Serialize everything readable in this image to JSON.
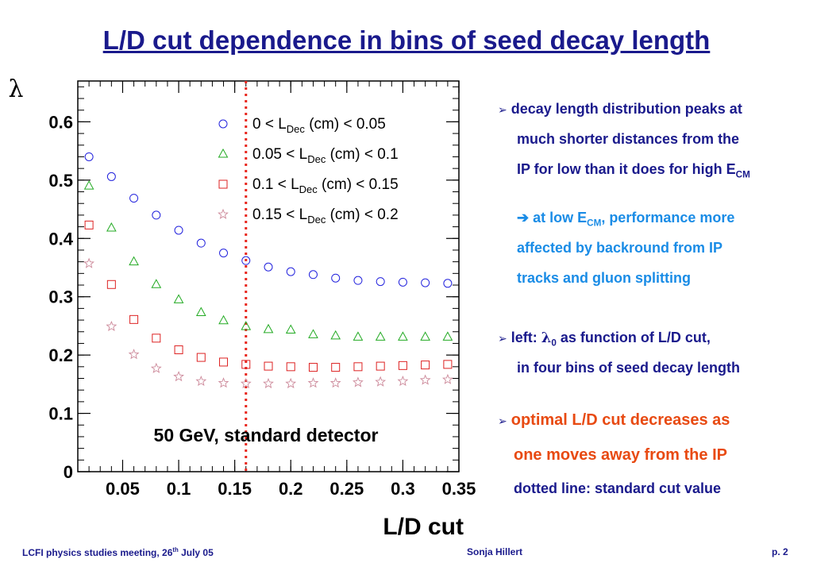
{
  "title": "L/D cut dependence in bins of seed decay length",
  "bullets": {
    "b1_line1": "decay length distribution peaks at",
    "b1_line2": "much shorter distances from the",
    "b1_line3_pre": "IP for low than it does for high E",
    "b1_line3_sub": "CM",
    "b2_line1_pre": "at low E",
    "b2_line1_sub": "CM",
    "b2_line1_post": ", performance more",
    "b2_line2": "affected by backround from IP",
    "b2_line3": "tracks and gluon splitting",
    "b3_line1_pre": "left: ",
    "b3_line1_sym": "λ",
    "b3_line1_sub": "0",
    "b3_line1_post": " as function of L/D cut,",
    "b3_line2": "in four bins of seed decay length",
    "b4_line1": "optimal L/D cut decreases as",
    "b4_line2": "one moves away from the IP",
    "b4_line3": "dotted line: standard cut value"
  },
  "footer": {
    "left_pre": "LCFI physics studies meeting, 26",
    "left_sup": "th",
    "left_post": " July 05",
    "center": "Sonja Hillert",
    "right": "p. 2"
  },
  "colors": {
    "navy": "#1a1a8c",
    "cyan": "#1a8ce6",
    "orange": "#e84a12",
    "series_blue": "#2222dd",
    "series_green": "#22aa22",
    "series_red": "#dd2222",
    "series_pink": "#cc8899",
    "cut_line": "#e8261e"
  },
  "chart_data": {
    "type": "scatter",
    "ylabel": "λ",
    "xlabel": "L/D cut",
    "annotation": "50 GeV, standard detector",
    "xlim": [
      0.01,
      0.35
    ],
    "ylim": [
      0,
      0.67
    ],
    "xticks": [
      0.05,
      0.1,
      0.15,
      0.2,
      0.25,
      0.3,
      0.35
    ],
    "xtick_labels": [
      "0.05",
      "0.1",
      "0.15",
      "0.2",
      "0.25",
      "0.3",
      "0.35"
    ],
    "yticks": [
      0,
      0.1,
      0.2,
      0.3,
      0.4,
      0.5,
      0.6
    ],
    "ytick_labels": [
      "0",
      "0.1",
      "0.2",
      "0.3",
      "0.4",
      "0.5",
      "0.6"
    ],
    "standard_cut": 0.16,
    "grid": false,
    "legend_position": "top-right",
    "x": [
      0.02,
      0.04,
      0.06,
      0.08,
      0.1,
      0.12,
      0.14,
      0.16,
      0.18,
      0.2,
      0.22,
      0.24,
      0.26,
      0.28,
      0.3,
      0.32,
      0.34
    ],
    "series": [
      {
        "label_pre": "0 < L",
        "label_sub": "Dec",
        "label_post": " (cm) < 0.05",
        "marker": "circle",
        "color": "#2222dd",
        "values": [
          0.54,
          0.506,
          0.469,
          0.44,
          0.414,
          0.392,
          0.375,
          0.362,
          0.351,
          0.343,
          0.338,
          0.332,
          0.328,
          0.326,
          0.325,
          0.324,
          0.323
        ]
      },
      {
        "label_pre": "0.05 < L",
        "label_sub": "Dec",
        "label_post": " (cm) < 0.1",
        "marker": "triangle",
        "color": "#22aa22",
        "values": [
          0.49,
          0.418,
          0.36,
          0.321,
          0.295,
          0.273,
          0.259,
          0.249,
          0.244,
          0.243,
          0.235,
          0.233,
          0.231,
          0.231,
          0.231,
          0.231,
          0.231
        ]
      },
      {
        "label_pre": "0.1 < L",
        "label_sub": "Dec",
        "label_post": " (cm) < 0.15",
        "marker": "square",
        "color": "#dd2222",
        "values": [
          0.423,
          0.321,
          0.261,
          0.229,
          0.209,
          0.196,
          0.188,
          0.184,
          0.181,
          0.18,
          0.179,
          0.179,
          0.18,
          0.181,
          0.182,
          0.183,
          0.184
        ]
      },
      {
        "label_pre": "0.15 < L",
        "label_sub": "Dec",
        "label_post": " (cm) < 0.2",
        "marker": "star",
        "color": "#cc8899",
        "values": [
          0.357,
          0.249,
          0.201,
          0.177,
          0.163,
          0.155,
          0.152,
          0.151,
          0.151,
          0.151,
          0.152,
          0.152,
          0.153,
          0.154,
          0.155,
          0.157,
          0.158
        ]
      }
    ]
  }
}
